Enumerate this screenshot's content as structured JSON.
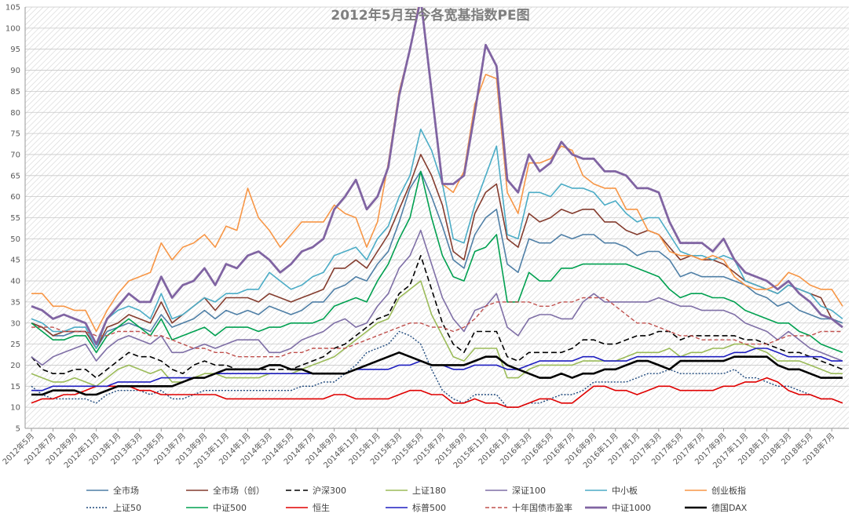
{
  "chart_data": {
    "type": "line",
    "title": "2012年5月至今各宽基指数PE图",
    "xlabel": "",
    "ylabel": "",
    "ylim": [
      5,
      105
    ],
    "yticks": [
      5,
      10,
      15,
      20,
      25,
      30,
      35,
      40,
      45,
      50,
      55,
      60,
      65,
      70,
      75,
      80,
      85,
      90,
      95,
      100,
      105
    ],
    "grid": true,
    "legend_position": "bottom",
    "categories": [
      "2012年5月",
      "2012年6月",
      "2012年7月",
      "2012年8月",
      "2012年9月",
      "2012年10月",
      "2012年11月",
      "2012年12月",
      "2013年1月",
      "2013年2月",
      "2013年3月",
      "2013年4月",
      "2013年5月",
      "2013年6月",
      "2013年7月",
      "2013年8月",
      "2013年9月",
      "2013年10月",
      "2013年11月",
      "2013年12月",
      "2014年1月",
      "2014年2月",
      "2014年3月",
      "2014年4月",
      "2014年5月",
      "2014年6月",
      "2014年7月",
      "2014年8月",
      "2014年9月",
      "2014年10月",
      "2014年11月",
      "2014年12月",
      "2015年1月",
      "2015年2月",
      "2015年3月",
      "2015年4月",
      "2015年5月",
      "2015年6月",
      "2015年7月",
      "2015年8月",
      "2015年9月",
      "2015年10月",
      "2015年11月",
      "2015年12月",
      "2016年1月",
      "2016年2月",
      "2016年3月",
      "2016年4月",
      "2016年5月",
      "2016年6月",
      "2016年7月",
      "2016年8月",
      "2016年9月",
      "2016年10月",
      "2016年11月",
      "2016年12月",
      "2017年1月",
      "2017年2月",
      "2017年3月",
      "2017年4月",
      "2017年5月",
      "2017年6月",
      "2017年7月",
      "2017年8月",
      "2017年9月",
      "2017年10月",
      "2017年11月",
      "2017年12月",
      "2018年1月",
      "2018年2月",
      "2018年3月",
      "2018年4月",
      "2018年5月",
      "2018年6月",
      "2018年7月",
      "2018年8月"
    ],
    "tick_labels": [
      "2012年5月",
      "2012年7月",
      "2012年9月",
      "2012年11月",
      "2013年1月",
      "2013年3月",
      "2013年5月",
      "2013年7月",
      "2013年9月",
      "2013年11月",
      "2014年1月",
      "2014年3月",
      "2014年5月",
      "2014年7月",
      "2014年9月",
      "2014年11月",
      "2015年1月",
      "2015年3月",
      "2015年5月",
      "2015年7月",
      "2015年9月",
      "2015年11月",
      "2016年1月",
      "2016年3月",
      "2016年5月",
      "2016年7月",
      "2016年9月",
      "2016年11月",
      "2017年1月",
      "2017年3月",
      "2017年5月",
      "2017年7月",
      "2017年9月",
      "2017年11月",
      "2018年1月",
      "2018年3月",
      "2018年5月",
      "2018年7月"
    ],
    "series": [
      {
        "name": "全市场",
        "color": "#4f7fa6",
        "dash": "solid",
        "width": 1.6,
        "values": [
          30,
          29,
          27,
          27,
          28,
          28,
          24,
          28,
          29,
          30,
          29,
          28,
          32,
          29,
          30,
          31,
          33,
          31,
          33,
          32,
          33,
          32,
          34,
          33,
          32,
          33,
          35,
          35,
          38,
          39,
          41,
          40,
          44,
          47,
          54,
          62,
          66,
          60,
          53,
          45,
          43,
          51,
          55,
          57,
          44,
          42,
          50,
          49,
          49,
          51,
          50,
          51,
          51,
          49,
          49,
          48,
          46,
          47,
          47,
          45,
          41,
          42,
          41,
          41,
          41,
          40,
          39,
          37,
          36,
          34,
          35,
          33,
          32,
          31,
          31,
          30
        ]
      },
      {
        "name": "全市场（创）",
        "color": "#843c2e",
        "dash": "solid",
        "width": 1.6,
        "values": [
          30,
          29,
          27,
          28,
          28,
          28,
          24,
          29,
          30,
          32,
          31,
          30,
          35,
          30,
          32,
          34,
          36,
          33,
          36,
          36,
          36,
          35,
          37,
          36,
          35,
          36,
          37,
          38,
          43,
          43,
          45,
          43,
          47,
          51,
          57,
          63,
          70,
          65,
          58,
          47,
          45,
          56,
          61,
          63,
          50,
          48,
          56,
          54,
          55,
          57,
          56,
          57,
          57,
          54,
          54,
          52,
          51,
          52,
          51,
          48,
          45,
          46,
          45,
          45,
          44,
          42,
          40,
          39,
          38,
          37,
          39,
          38,
          37,
          36,
          31,
          29
        ]
      },
      {
        "name": "沪深300",
        "color": "#000000",
        "dash": "7,4",
        "width": 1.6,
        "values": [
          22,
          19,
          18,
          18,
          19,
          19,
          17,
          19,
          21,
          23,
          22,
          22,
          21,
          19,
          18,
          20,
          21,
          20,
          20,
          19,
          19,
          19,
          19,
          19,
          19,
          20,
          21,
          22,
          24,
          25,
          27,
          29,
          31,
          32,
          37,
          39,
          46,
          38,
          30,
          25,
          23,
          28,
          28,
          28,
          22,
          21,
          23,
          23,
          23,
          23,
          24,
          26,
          26,
          25,
          25,
          26,
          27,
          27,
          28,
          28,
          26,
          27,
          27,
          27,
          27,
          27,
          26,
          26,
          25,
          24,
          23,
          23,
          22,
          21,
          20,
          19
        ]
      },
      {
        "name": "上证180",
        "color": "#9bbb59",
        "dash": "solid",
        "width": 1.6,
        "values": [
          18,
          17,
          16,
          16,
          17,
          16,
          15,
          17,
          19,
          20,
          19,
          18,
          19,
          16,
          16,
          17,
          18,
          18,
          17,
          17,
          17,
          17,
          18,
          18,
          18,
          19,
          20,
          21,
          22,
          24,
          26,
          28,
          30,
          31,
          36,
          38,
          40,
          32,
          27,
          22,
          21,
          24,
          24,
          24,
          17,
          17,
          19,
          20,
          20,
          20,
          20,
          21,
          21,
          21,
          21,
          22,
          23,
          23,
          23,
          24,
          22,
          23,
          23,
          24,
          24,
          25,
          25,
          24,
          23,
          21,
          21,
          21,
          20,
          19,
          18,
          18
        ]
      },
      {
        "name": "深证100",
        "color": "#7f6fa6",
        "dash": "solid",
        "width": 1.6,
        "values": [
          22,
          20,
          22,
          23,
          24,
          25,
          21,
          24,
          26,
          27,
          26,
          25,
          27,
          23,
          23,
          24,
          25,
          24,
          25,
          26,
          26,
          26,
          23,
          23,
          24,
          26,
          27,
          28,
          30,
          31,
          29,
          30,
          34,
          37,
          43,
          46,
          52,
          44,
          36,
          31,
          28,
          33,
          34,
          37,
          29,
          27,
          31,
          32,
          32,
          31,
          31,
          35,
          37,
          35,
          35,
          35,
          35,
          35,
          36,
          35,
          34,
          34,
          33,
          33,
          33,
          32,
          30,
          29,
          28,
          26,
          28,
          26,
          24,
          23,
          22,
          21
        ]
      },
      {
        "name": "中小板",
        "color": "#4bacc6",
        "dash": "solid",
        "width": 1.6,
        "values": [
          31,
          30,
          28,
          28,
          29,
          29,
          24,
          31,
          33,
          34,
          33,
          31,
          37,
          31,
          32,
          34,
          36,
          35,
          37,
          37,
          38,
          38,
          42,
          40,
          38,
          39,
          41,
          42,
          46,
          47,
          48,
          45,
          50,
          53,
          60,
          65,
          76,
          71,
          63,
          50,
          49,
          58,
          65,
          72,
          51,
          50,
          61,
          61,
          60,
          63,
          62,
          62,
          61,
          58,
          59,
          56,
          54,
          55,
          55,
          51,
          47,
          46,
          46,
          45,
          46,
          45,
          40,
          39,
          38,
          37,
          39,
          38,
          37,
          34,
          33,
          31
        ]
      },
      {
        "name": "创业板指",
        "color": "#f79646",
        "dash": "solid",
        "width": 1.6,
        "values": [
          37,
          37,
          34,
          34,
          33,
          33,
          28,
          33,
          37,
          40,
          41,
          42,
          49,
          45,
          48,
          49,
          51,
          48,
          53,
          52,
          62,
          55,
          52,
          48,
          51,
          54,
          54,
          54,
          58,
          56,
          55,
          48,
          54,
          68,
          85,
          95,
          108,
          85,
          63,
          61,
          66,
          82,
          89,
          88,
          61,
          56,
          68,
          68,
          69,
          72,
          71,
          65,
          63,
          62,
          62,
          57,
          57,
          52,
          51,
          47,
          46,
          46,
          45,
          46,
          45,
          41,
          39,
          38,
          38,
          39,
          42,
          41,
          39,
          38,
          38,
          34
        ]
      },
      {
        "name": "上证50",
        "color": "#1f497d",
        "dash": "2,2",
        "width": 1.4,
        "values": [
          15,
          13,
          12,
          12,
          12,
          12,
          11,
          13,
          14,
          14,
          14,
          13,
          14,
          12,
          12,
          13,
          14,
          14,
          14,
          14,
          14,
          14,
          14,
          14,
          14,
          15,
          15,
          16,
          16,
          18,
          20,
          23,
          24,
          25,
          28,
          27,
          25,
          19,
          14,
          12,
          11,
          13,
          13,
          13,
          10,
          10,
          11,
          11,
          12,
          13,
          13,
          14,
          16,
          16,
          16,
          16,
          17,
          18,
          18,
          19,
          18,
          18,
          18,
          18,
          18,
          19,
          17,
          17,
          16,
          15,
          15,
          14,
          13,
          12,
          12,
          11
        ]
      },
      {
        "name": "中证500",
        "color": "#00a050",
        "dash": "solid",
        "width": 1.6,
        "values": [
          30,
          28,
          26,
          26,
          27,
          27,
          23,
          27,
          29,
          31,
          29,
          27,
          31,
          26,
          27,
          28,
          29,
          27,
          29,
          29,
          29,
          28,
          29,
          29,
          30,
          30,
          30,
          31,
          34,
          35,
          36,
          35,
          40,
          44,
          50,
          55,
          66,
          55,
          46,
          41,
          40,
          47,
          48,
          51,
          35,
          35,
          42,
          40,
          40,
          43,
          43,
          44,
          44,
          44,
          44,
          44,
          43,
          42,
          41,
          38,
          36,
          37,
          37,
          36,
          36,
          35,
          33,
          32,
          31,
          30,
          30,
          28,
          27,
          25,
          24,
          23
        ]
      },
      {
        "name": "恒生",
        "color": "#e00000",
        "dash": "solid",
        "width": 1.6,
        "values": [
          11,
          12,
          12,
          13,
          13,
          14,
          15,
          15,
          15,
          15,
          14,
          14,
          13,
          13,
          13,
          13,
          13,
          13,
          12,
          12,
          12,
          12,
          12,
          12,
          12,
          12,
          12,
          12,
          13,
          13,
          12,
          12,
          12,
          12,
          13,
          14,
          14,
          13,
          13,
          11,
          11,
          12,
          11,
          11,
          10,
          10,
          11,
          12,
          12,
          11,
          11,
          13,
          15,
          15,
          14,
          14,
          13,
          14,
          15,
          15,
          14,
          14,
          14,
          14,
          15,
          15,
          16,
          16,
          17,
          16,
          14,
          13,
          13,
          12,
          12,
          11
        ]
      },
      {
        "name": "标普500",
        "color": "#1f1fc0",
        "dash": "solid",
        "width": 1.6,
        "values": [
          14,
          14,
          15,
          15,
          15,
          15,
          15,
          15,
          16,
          16,
          16,
          16,
          17,
          17,
          17,
          17,
          17,
          18,
          18,
          18,
          18,
          18,
          18,
          18,
          18,
          18,
          18,
          18,
          18,
          18,
          19,
          19,
          19,
          19,
          20,
          20,
          21,
          20,
          20,
          19,
          19,
          20,
          20,
          20,
          19,
          19,
          20,
          21,
          21,
          21,
          21,
          22,
          22,
          21,
          21,
          21,
          22,
          22,
          22,
          22,
          22,
          22,
          22,
          22,
          22,
          23,
          23,
          24,
          24,
          23,
          22,
          22,
          22,
          22,
          21,
          21
        ]
      },
      {
        "name": "十年国债市盈率",
        "color": "#c0504d",
        "dash": "5,3",
        "width": 1.4,
        "values": [
          29,
          29,
          29,
          28,
          28,
          28,
          27,
          27,
          28,
          28,
          28,
          27,
          27,
          26,
          25,
          24,
          24,
          23,
          23,
          22,
          22,
          22,
          22,
          22,
          23,
          23,
          24,
          24,
          24,
          24,
          25,
          26,
          27,
          28,
          29,
          30,
          30,
          29,
          29,
          28,
          29,
          31,
          34,
          35,
          35,
          35,
          35,
          34,
          34,
          35,
          35,
          36,
          36,
          36,
          34,
          32,
          30,
          30,
          29,
          28,
          27,
          27,
          26,
          26,
          26,
          26,
          25,
          25,
          25,
          26,
          27,
          27,
          27,
          28,
          28,
          28
        ]
      },
      {
        "name": "中证1000",
        "color": "#8064a2",
        "dash": "solid",
        "width": 2.8,
        "values": [
          34,
          33,
          31,
          32,
          31,
          30,
          25,
          31,
          34,
          37,
          35,
          35,
          41,
          36,
          39,
          40,
          43,
          39,
          44,
          43,
          46,
          47,
          45,
          42,
          44,
          47,
          48,
          50,
          57,
          60,
          64,
          57,
          60,
          67,
          84,
          95,
          107,
          85,
          63,
          63,
          65,
          80,
          96,
          91,
          64,
          61,
          70,
          66,
          68,
          73,
          70,
          69,
          69,
          66,
          66,
          65,
          62,
          62,
          61,
          54,
          49,
          49,
          49,
          47,
          50,
          45,
          42,
          41,
          40,
          38,
          40,
          37,
          35,
          32,
          31,
          29
        ]
      },
      {
        "name": "德国DAX",
        "color": "#000000",
        "dash": "solid",
        "width": 2.6,
        "values": [
          13,
          13,
          14,
          14,
          14,
          13,
          13,
          14,
          15,
          15,
          15,
          15,
          15,
          15,
          16,
          17,
          17,
          18,
          19,
          19,
          19,
          19,
          20,
          20,
          19,
          19,
          18,
          18,
          18,
          18,
          19,
          20,
          21,
          22,
          23,
          22,
          21,
          20,
          20,
          20,
          20,
          21,
          22,
          22,
          20,
          19,
          18,
          17,
          17,
          18,
          17,
          18,
          18,
          19,
          19,
          20,
          21,
          21,
          20,
          19,
          21,
          21,
          21,
          21,
          21,
          22,
          22,
          22,
          22,
          20,
          19,
          19,
          18,
          17,
          17,
          17
        ]
      }
    ]
  }
}
